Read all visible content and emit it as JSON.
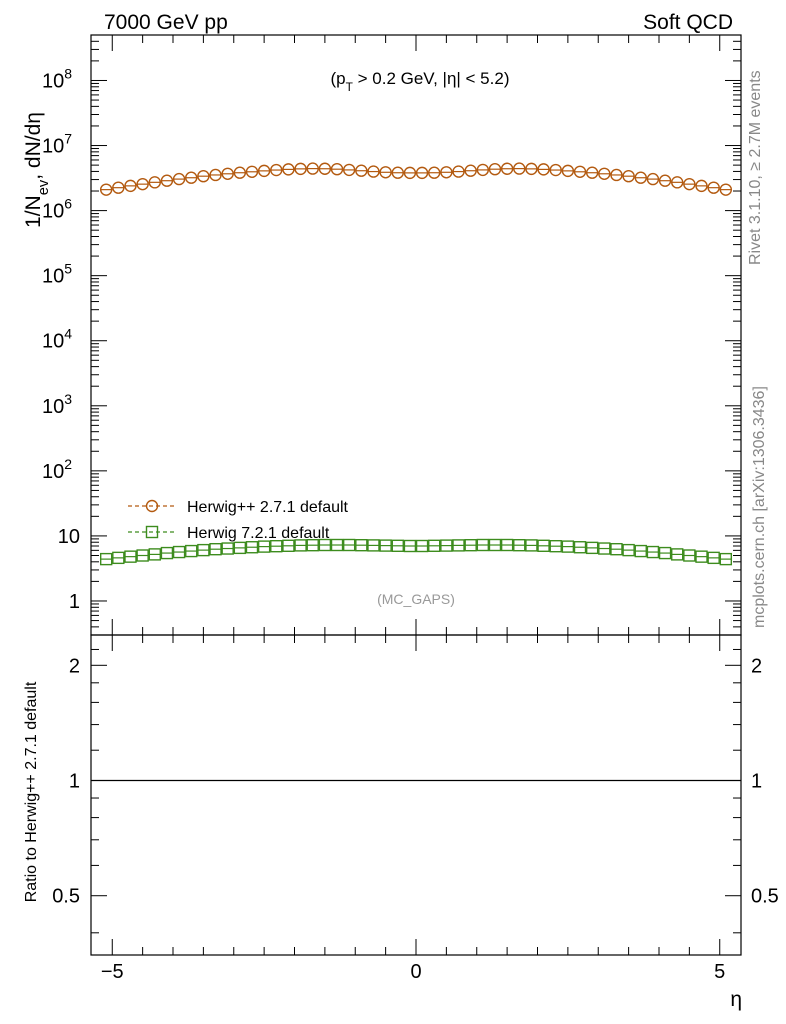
{
  "header": {
    "left_label": "7000 GeV pp",
    "right_label": "Soft QCD"
  },
  "side_labels": {
    "rivet": "Rivet 3.1.10, ≥ 2.7M events",
    "mcplots": "mcplots.cern.ch [arXiv:1306.3436]"
  },
  "chart_data": [
    {
      "type": "scatter",
      "panel": "main",
      "ylabel": "1/N_ev, dN/dη",
      "cut_label": "(p_T > 0.2 GeV, |η| < 5.2)",
      "watermark": "(MC_GAPS)",
      "yscale": "log",
      "ylim": [
        0.3,
        500000000
      ],
      "xlim": [
        -5.35,
        5.35
      ],
      "yticks": [
        {
          "value": 1,
          "label": "1"
        },
        {
          "value": 10,
          "label": "10"
        },
        {
          "value": 100,
          "label": "10",
          "exp": "2"
        },
        {
          "value": 1000,
          "label": "10",
          "exp": "3"
        },
        {
          "value": 10000,
          "label": "10",
          "exp": "4"
        },
        {
          "value": 100000,
          "label": "10",
          "exp": "5"
        },
        {
          "value": 1000000,
          "label": "10",
          "exp": "6"
        },
        {
          "value": 10000000,
          "label": "10",
          "exp": "7"
        },
        {
          "value": 100000000,
          "label": "10",
          "exp": "8"
        }
      ],
      "legend_position": "lower-left",
      "series": [
        {
          "name": "Herwig++ 2.7.1 default",
          "color": "#b35a10",
          "marker": "circle",
          "x": [
            -5.1,
            -4.9,
            -4.7,
            -4.5,
            -4.3,
            -4.1,
            -3.9,
            -3.7,
            -3.5,
            -3.3,
            -3.1,
            -2.9,
            -2.7,
            -2.5,
            -2.3,
            -2.1,
            -1.9,
            -1.7,
            -1.5,
            -1.3,
            -1.1,
            -0.9,
            -0.7,
            -0.5,
            -0.3,
            -0.1,
            0.1,
            0.3,
            0.5,
            0.7,
            0.9,
            1.1,
            1.3,
            1.5,
            1.7,
            1.9,
            2.1,
            2.3,
            2.5,
            2.7,
            2.9,
            3.1,
            3.3,
            3.5,
            3.7,
            3.9,
            4.1,
            4.3,
            4.5,
            4.7,
            4.9,
            5.1
          ],
          "y": [
            2100000,
            2250000,
            2400000,
            2550000,
            2720000,
            2880000,
            3050000,
            3200000,
            3380000,
            3530000,
            3680000,
            3820000,
            3950000,
            4080000,
            4200000,
            4300000,
            4380000,
            4420000,
            4400000,
            4330000,
            4220000,
            4100000,
            3980000,
            3880000,
            3820000,
            3800000,
            3800000,
            3820000,
            3880000,
            3980000,
            4100000,
            4220000,
            4330000,
            4400000,
            4420000,
            4380000,
            4300000,
            4200000,
            4080000,
            3950000,
            3820000,
            3680000,
            3530000,
            3380000,
            3200000,
            3050000,
            2880000,
            2720000,
            2550000,
            2400000,
            2250000,
            2100000
          ]
        },
        {
          "name": "Herwig 7.2.1 default",
          "color": "#3d8c1e",
          "marker": "square",
          "x": [
            -5.1,
            -4.9,
            -4.7,
            -4.5,
            -4.3,
            -4.1,
            -3.9,
            -3.7,
            -3.5,
            -3.3,
            -3.1,
            -2.9,
            -2.7,
            -2.5,
            -2.3,
            -2.1,
            -1.9,
            -1.7,
            -1.5,
            -1.3,
            -1.1,
            -0.9,
            -0.7,
            -0.5,
            -0.3,
            -0.1,
            0.1,
            0.3,
            0.5,
            0.7,
            0.9,
            1.1,
            1.3,
            1.5,
            1.7,
            1.9,
            2.1,
            2.3,
            2.5,
            2.7,
            2.9,
            3.1,
            3.3,
            3.5,
            3.7,
            3.9,
            4.1,
            4.3,
            4.5,
            4.7,
            4.9,
            5.1
          ],
          "y": [
            4.4,
            4.6,
            4.8,
            5.0,
            5.2,
            5.45,
            5.65,
            5.85,
            6.05,
            6.25,
            6.4,
            6.55,
            6.7,
            6.85,
            6.95,
            7.05,
            7.15,
            7.2,
            7.25,
            7.25,
            7.25,
            7.2,
            7.15,
            7.1,
            7.05,
            7.0,
            7.0,
            7.05,
            7.1,
            7.15,
            7.2,
            7.25,
            7.25,
            7.25,
            7.2,
            7.15,
            7.05,
            6.95,
            6.85,
            6.7,
            6.55,
            6.4,
            6.25,
            6.05,
            5.85,
            5.65,
            5.45,
            5.2,
            5.0,
            4.8,
            4.6,
            4.4
          ]
        }
      ]
    },
    {
      "type": "line",
      "panel": "ratio",
      "ylabel": "Ratio to Herwig++ 2.7.1 default",
      "xlabel": "η",
      "yscale": "log",
      "ylim": [
        0.35,
        2.4
      ],
      "xlim": [
        -5.35,
        5.35
      ],
      "yticks": [
        {
          "value": 0.5,
          "label": "0.5"
        },
        {
          "value": 1,
          "label": "1"
        },
        {
          "value": 2,
          "label": "2"
        }
      ],
      "xticks": [
        {
          "value": -5,
          "label": "−5"
        },
        {
          "value": 0,
          "label": "0"
        },
        {
          "value": 5,
          "label": "5"
        }
      ],
      "reference_value": 1
    }
  ]
}
